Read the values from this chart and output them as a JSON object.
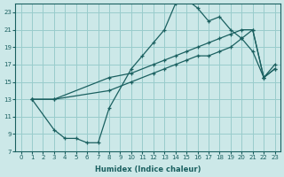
{
  "xlabel": "Humidex (Indice chaleur)",
  "bg_color": "#cce8e8",
  "grid_color": "#99cccc",
  "line_color": "#1a6060",
  "xlim": [
    -0.5,
    23.5
  ],
  "ylim": [
    7,
    24
  ],
  "xticks": [
    0,
    1,
    2,
    3,
    4,
    5,
    6,
    7,
    8,
    9,
    10,
    11,
    12,
    13,
    14,
    15,
    16,
    17,
    18,
    19,
    20,
    21,
    22,
    23
  ],
  "yticks": [
    7,
    9,
    11,
    13,
    15,
    17,
    19,
    21,
    23
  ],
  "line1_x": [
    1,
    3,
    4,
    5,
    6,
    7,
    8,
    10,
    11,
    12,
    13,
    14,
    15,
    16,
    17,
    18,
    19,
    20,
    21,
    22,
    23
  ],
  "line1_y": [
    13,
    9.5,
    8.5,
    8.5,
    8,
    8,
    12,
    16.5,
    18,
    19.5,
    21,
    24,
    24.5,
    23.5,
    22,
    22.5,
    21,
    20,
    18.5,
    15.5,
    17
  ],
  "line2_x": [
    1,
    3,
    8,
    10,
    12,
    13,
    14,
    15,
    16,
    17,
    18,
    19,
    20,
    21,
    22,
    23
  ],
  "line2_y": [
    13,
    13,
    15.5,
    16,
    17,
    17.5,
    18,
    18.5,
    19,
    19.5,
    20,
    20.5,
    21,
    21,
    15.5,
    16.5
  ],
  "line3_x": [
    1,
    3,
    8,
    10,
    12,
    13,
    14,
    15,
    16,
    17,
    18,
    19,
    20,
    21,
    22,
    23
  ],
  "line3_y": [
    13,
    13,
    14,
    15,
    16,
    16.5,
    17,
    17.5,
    18,
    18,
    18.5,
    19,
    20,
    21,
    15.5,
    16.5
  ]
}
